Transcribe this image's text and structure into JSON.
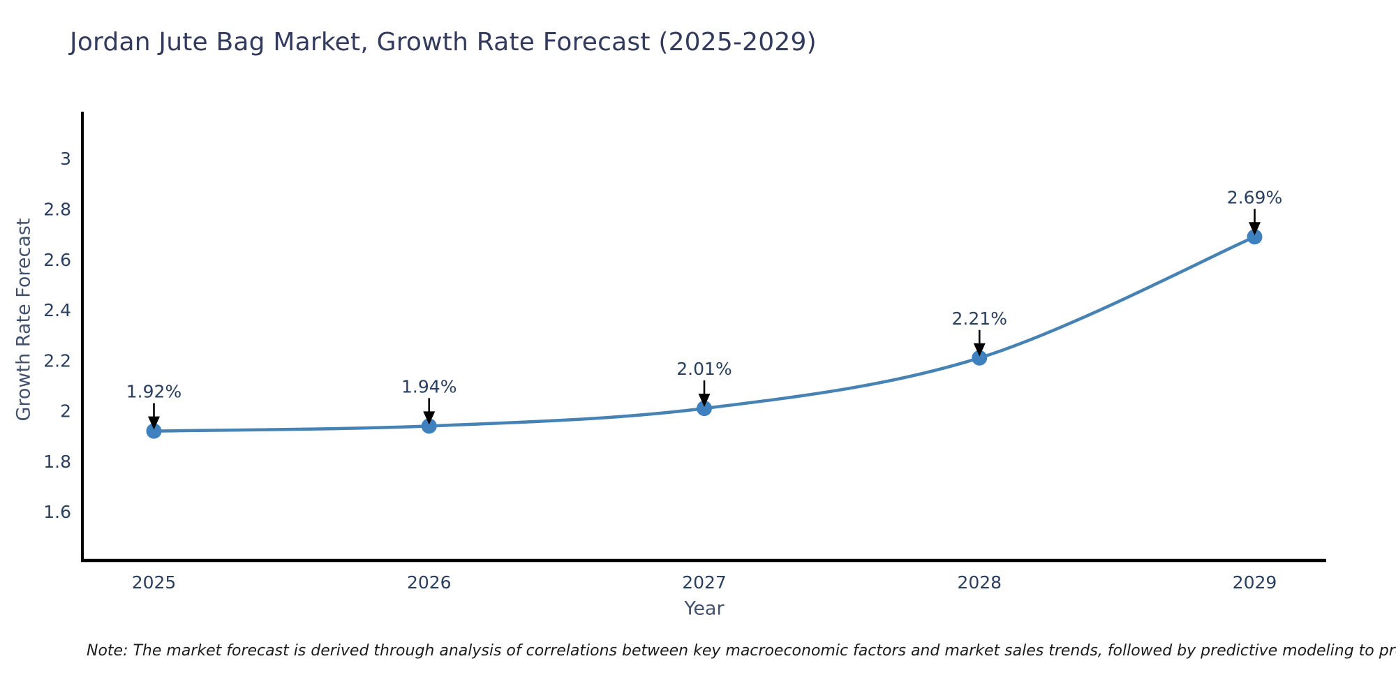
{
  "note": "Note: The market forecast is derived through analysis of correlations between key macroeconomic factors and market sales trends, followed by predictive modeling to project future sales",
  "chart_data": {
    "type": "line",
    "title": "Jordan Jute Bag Market, Growth Rate Forecast (2025-2029)",
    "xlabel": "Year",
    "ylabel": "Growth Rate Forecast",
    "categories": [
      2025,
      2026,
      2027,
      2028,
      2029
    ],
    "series": [
      {
        "name": "Growth Rate Forecast",
        "values": [
          1.92,
          1.94,
          2.01,
          2.21,
          2.69
        ]
      }
    ],
    "point_labels": [
      "1.92%",
      "1.94%",
      "2.01%",
      "2.21%",
      "2.69%"
    ],
    "yticks": [
      1.6,
      1.8,
      2,
      2.2,
      2.4,
      2.6,
      2.8,
      3
    ],
    "ylim": [
      1.407,
      3.186
    ],
    "xlim": [
      2024.74,
      2029.26
    ],
    "grid": false,
    "legend_position": "none",
    "line_shape": "spline",
    "colors": {
      "line": "#4682b4",
      "marker": "#3f80bf",
      "axis": "#000000",
      "tick_text": "#2a3f5f",
      "annotation_text": "#2a3f5f",
      "annotation_arrow": "#000000",
      "title_text": "#323a5e",
      "background": "#ffffff"
    }
  }
}
